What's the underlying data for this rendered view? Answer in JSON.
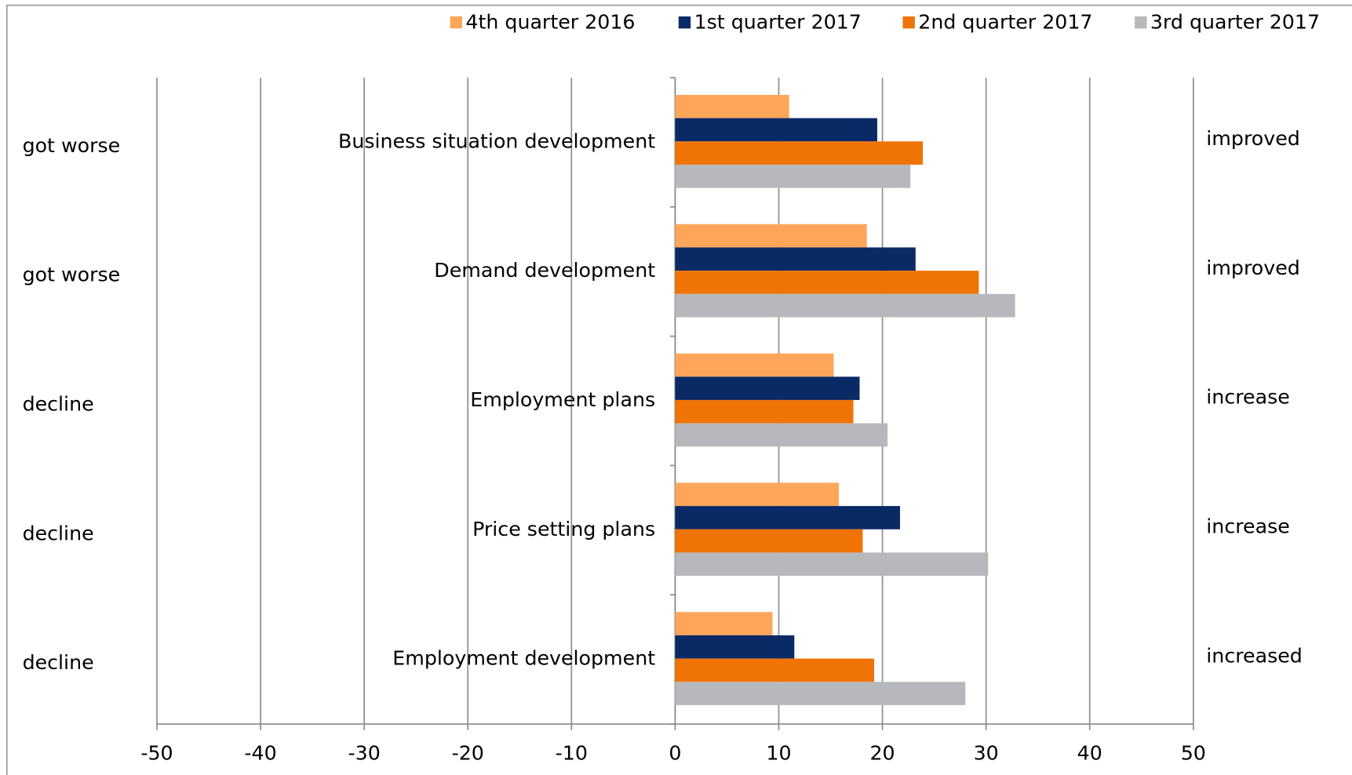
{
  "chart_data": {
    "type": "bar",
    "orientation": "horizontal",
    "categories": [
      "Business situation development",
      "Demand development",
      "Employment plans",
      "Price setting plans",
      "Employment development"
    ],
    "left_labels": [
      "got worse",
      "got worse",
      "decline",
      "decline",
      "decline"
    ],
    "right_labels": [
      "improved",
      "improved",
      "increase",
      "increase",
      "increased"
    ],
    "series": [
      {
        "name": "4th quarter 2016",
        "color": "#fda65a",
        "values": [
          11,
          18.5,
          15.3,
          15.8,
          9.4
        ]
      },
      {
        "name": "1st quarter 2017",
        "color": "#0a2a66",
        "values": [
          19.5,
          23.2,
          17.8,
          21.7,
          11.5
        ]
      },
      {
        "name": "2nd quarter 2017",
        "color": "#f07305",
        "values": [
          23.9,
          29.3,
          17.2,
          18.1,
          19.2
        ]
      },
      {
        "name": "3rd quarter 2017",
        "color": "#b7b8bc",
        "values": [
          22.7,
          32.8,
          20.5,
          30.2,
          28.0
        ]
      }
    ],
    "xlim": [
      -50,
      50
    ],
    "xticks": [
      -50,
      -40,
      -30,
      -20,
      -10,
      0,
      10,
      20,
      30,
      40,
      50
    ],
    "grid": true,
    "legend": "top-right"
  }
}
